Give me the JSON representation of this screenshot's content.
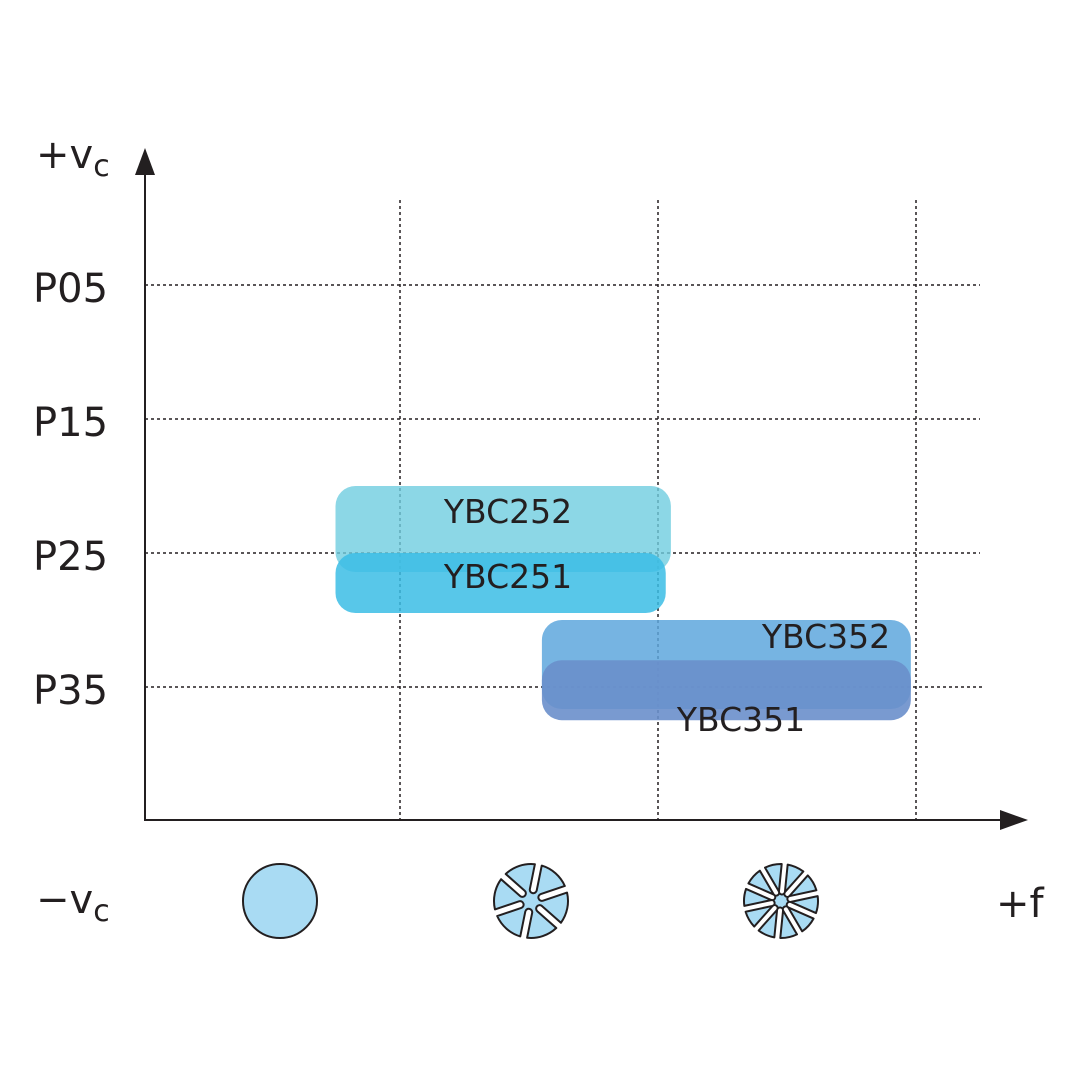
{
  "chart_data": {
    "type": "range-map",
    "title": "",
    "y_axis": {
      "label_top": "+v",
      "label_top_sub": "c",
      "label_bottom": "−v",
      "label_bottom_sub": "c",
      "categories": [
        "P05",
        "P15",
        "P25",
        "P35"
      ]
    },
    "x_axis": {
      "label": "+f",
      "categories": [
        "round chip",
        "medium chip breaker",
        "heavy chip breaker"
      ],
      "icons": [
        "chip-round-icon",
        "chip-breaker-6-icon",
        "chip-breaker-10-icon"
      ]
    },
    "grid": true,
    "series": [
      {
        "name": "YBC252",
        "x_range": [
          0.75,
          2.05
        ],
        "y_range": [
          "P20",
          "P30"
        ],
        "color": "#6fcde0",
        "opacity": 0.8
      },
      {
        "name": "YBC251",
        "x_range": [
          0.75,
          2.03
        ],
        "y_range": [
          "P25",
          "P30"
        ],
        "color": "#3bbde5",
        "opacity": 0.85
      },
      {
        "name": "YBC352",
        "x_range": [
          1.55,
          2.98
        ],
        "y_range": [
          "P30",
          "P40"
        ],
        "color": "#5ea7dd",
        "opacity": 0.85
      },
      {
        "name": "YBC351",
        "x_range": [
          1.55,
          2.98
        ],
        "y_range": [
          "P33",
          "P40"
        ],
        "color": "#6a8fcb",
        "opacity": 0.9
      }
    ],
    "colors": {
      "axis": "#231f20",
      "icon_fill": "#a9dbf3"
    }
  }
}
